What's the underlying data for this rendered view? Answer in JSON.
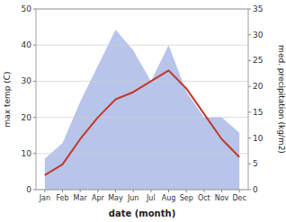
{
  "chart_data": {
    "type": "line",
    "xlabel": "date (month)",
    "ylabel": "max temp (C)",
    "y2label": "med. precipitation (kg/m2)",
    "categories": [
      "Jan",
      "Feb",
      "Mar",
      "Apr",
      "May",
      "Jun",
      "Jul",
      "Aug",
      "Sep",
      "Oct",
      "Nov",
      "Dec"
    ],
    "series": [
      {
        "type": "line",
        "color": "#c0392b",
        "values": [
          4,
          7,
          14,
          20,
          25,
          27,
          30,
          33,
          28,
          21,
          14,
          9
        ]
      },
      {
        "type": "area",
        "axis": "y2",
        "color": "#b8c4ea",
        "values": [
          6,
          9,
          17,
          24,
          31,
          27,
          21,
          28,
          19,
          14,
          14,
          11
        ]
      }
    ],
    "ylim": [
      0,
      50
    ],
    "yticks": [
      0,
      10,
      20,
      30,
      40,
      50
    ],
    "y2lim": [
      0,
      35
    ],
    "y2ticks": [
      0,
      5,
      10,
      15,
      20,
      25,
      30,
      35
    ],
    "grid": true
  }
}
